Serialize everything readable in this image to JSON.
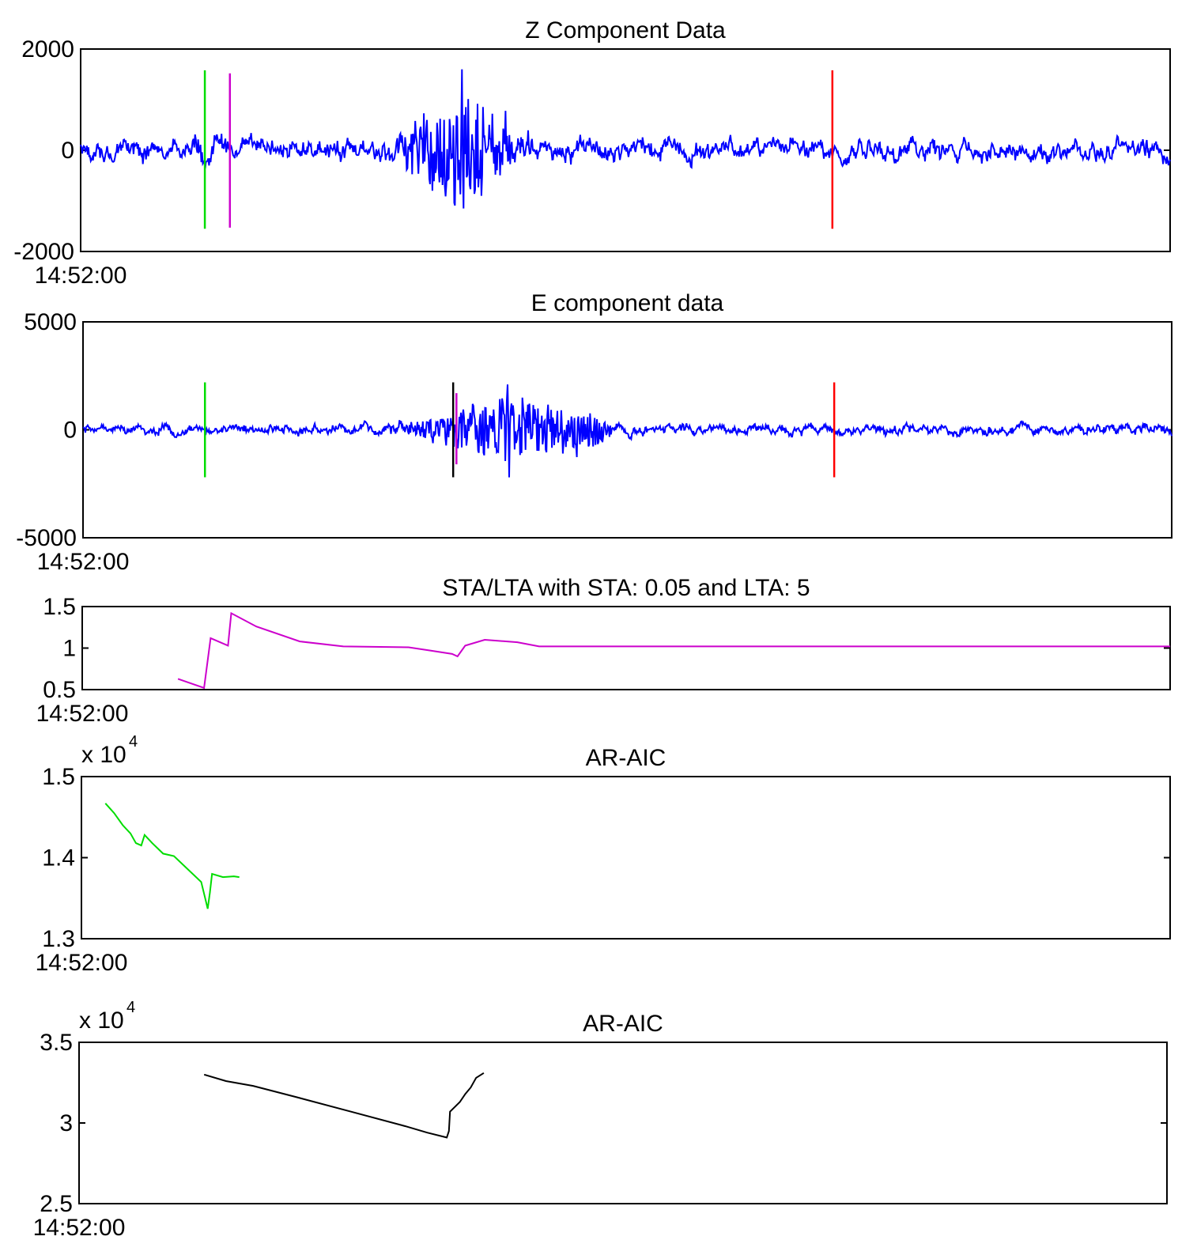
{
  "chart_data": [
    {
      "type": "line",
      "title": "Z Component Data",
      "ylim": [
        -2000,
        2000
      ],
      "yticks": [
        2000,
        0,
        -2000
      ],
      "ytick_labels": [
        "2000",
        "0",
        "-2000"
      ],
      "xlim": [
        0,
        1
      ],
      "xtick_labels": [
        "14:52:00"
      ],
      "exponent": "",
      "series": [
        {
          "color": "#0000ff",
          "style": "noise",
          "x_range": [
            0,
            1
          ],
          "base_amplitude": 250,
          "bursts": [
            {
              "center": 0.35,
              "width": 0.06,
              "amplitude": 1000,
              "peak": 1600,
              "trough": -1150
            },
            {
              "center": 0.118,
              "width": 0.03,
              "amplitude": 150
            }
          ]
        }
      ],
      "markers": [
        {
          "x": 0.114,
          "color": "#00dd00",
          "ymin": -1550,
          "ymax": 1580
        },
        {
          "x": 0.137,
          "color": "#cc00cc",
          "ymin": -1530,
          "ymax": 1520
        },
        {
          "x": 0.69,
          "color": "#ff0000",
          "ymin": -1550,
          "ymax": 1580
        }
      ]
    },
    {
      "type": "line",
      "title": "E component data",
      "ylim": [
        -5000,
        5000
      ],
      "yticks": [
        5000,
        0,
        -5000
      ],
      "ytick_labels": [
        "5000",
        "0",
        "-5000"
      ],
      "xlim": [
        0,
        1
      ],
      "xtick_labels": [
        "14:52:00"
      ],
      "exponent": "",
      "series": [
        {
          "color": "#0000ff",
          "style": "noise",
          "x_range": [
            0,
            1
          ],
          "base_amplitude": 300,
          "bursts": [
            {
              "center": 0.39,
              "width": 0.08,
              "amplitude": 1500,
              "peak": 2100,
              "trough": -2200
            },
            {
              "center": 0.46,
              "width": 0.03,
              "amplitude": 800
            }
          ]
        }
      ],
      "markers": [
        {
          "x": 0.112,
          "color": "#00dd00",
          "ymin": -2200,
          "ymax": 2200
        },
        {
          "x": 0.34,
          "color": "#000000",
          "ymin": -2200,
          "ymax": 2200
        },
        {
          "x": 0.343,
          "color": "#cc00cc",
          "ymin": -1600,
          "ymax": 1700
        },
        {
          "x": 0.69,
          "color": "#ff0000",
          "ymin": -2200,
          "ymax": 2200
        }
      ]
    },
    {
      "type": "line",
      "title": "STA/LTA with STA: 0.05 and LTA: 5",
      "ylim": [
        0.5,
        1.5
      ],
      "yticks": [
        1.5,
        1,
        0.5
      ],
      "ytick_labels": [
        "1.5",
        "1",
        "0.5"
      ],
      "xlim": [
        0,
        1
      ],
      "xtick_labels": [
        "14:52:00"
      ],
      "exponent": "",
      "series": [
        {
          "color": "#cc00cc",
          "style": "polyline",
          "points": [
            [
              0.088,
              0.63
            ],
            [
              0.112,
              0.52
            ],
            [
              0.118,
              1.12
            ],
            [
              0.134,
              1.03
            ],
            [
              0.137,
              1.42
            ],
            [
              0.16,
              1.26
            ],
            [
              0.2,
              1.08
            ],
            [
              0.24,
              1.02
            ],
            [
              0.3,
              1.01
            ],
            [
              0.32,
              0.97
            ],
            [
              0.34,
              0.93
            ],
            [
              0.345,
              0.9
            ],
            [
              0.352,
              1.03
            ],
            [
              0.37,
              1.1
            ],
            [
              0.4,
              1.07
            ],
            [
              0.42,
              1.02
            ],
            [
              0.6,
              1.02
            ],
            [
              0.8,
              1.02
            ],
            [
              1.0,
              1.02
            ]
          ]
        }
      ],
      "markers": []
    },
    {
      "type": "line",
      "title": "AR-AIC",
      "ylim": [
        1.3,
        1.5
      ],
      "yticks": [
        1.5,
        1.4,
        1.3
      ],
      "ytick_labels": [
        "1.5",
        "1.4",
        "1.3"
      ],
      "xlim": [
        0,
        1
      ],
      "xtick_labels": [
        "14:52:00"
      ],
      "exponent": "x 10",
      "exponent_power": "4",
      "series": [
        {
          "color": "#00dd00",
          "style": "polyline",
          "points": [
            [
              0.022,
              1.467
            ],
            [
              0.03,
              1.455
            ],
            [
              0.038,
              1.44
            ],
            [
              0.045,
              1.43
            ],
            [
              0.05,
              1.418
            ],
            [
              0.055,
              1.415
            ],
            [
              0.058,
              1.428
            ],
            [
              0.065,
              1.418
            ],
            [
              0.075,
              1.405
            ],
            [
              0.085,
              1.402
            ],
            [
              0.11,
              1.37
            ],
            [
              0.114,
              1.348
            ],
            [
              0.116,
              1.337
            ],
            [
              0.118,
              1.357
            ],
            [
              0.12,
              1.38
            ],
            [
              0.13,
              1.376
            ],
            [
              0.14,
              1.377
            ],
            [
              0.145,
              1.376
            ]
          ]
        }
      ],
      "markers": []
    },
    {
      "type": "line",
      "title": "AR-AIC",
      "ylim": [
        2.5,
        3.5
      ],
      "yticks": [
        3.5,
        3,
        2.5
      ],
      "ytick_labels": [
        "3.5",
        "3",
        "2.5"
      ],
      "xlim": [
        0,
        1
      ],
      "xtick_labels": [
        "14:52:00"
      ],
      "exponent": "x 10",
      "exponent_power": "4",
      "series": [
        {
          "color": "#000000",
          "style": "polyline",
          "points": [
            [
              0.115,
              3.3
            ],
            [
              0.135,
              3.26
            ],
            [
              0.16,
              3.23
            ],
            [
              0.2,
              3.16
            ],
            [
              0.25,
              3.07
            ],
            [
              0.3,
              2.98
            ],
            [
              0.32,
              2.94
            ],
            [
              0.338,
              2.91
            ],
            [
              0.34,
              2.95
            ],
            [
              0.341,
              3.07
            ],
            [
              0.35,
              3.13
            ],
            [
              0.355,
              3.18
            ],
            [
              0.36,
              3.22
            ],
            [
              0.365,
              3.28
            ],
            [
              0.372,
              3.31
            ]
          ]
        }
      ],
      "markers": []
    }
  ]
}
